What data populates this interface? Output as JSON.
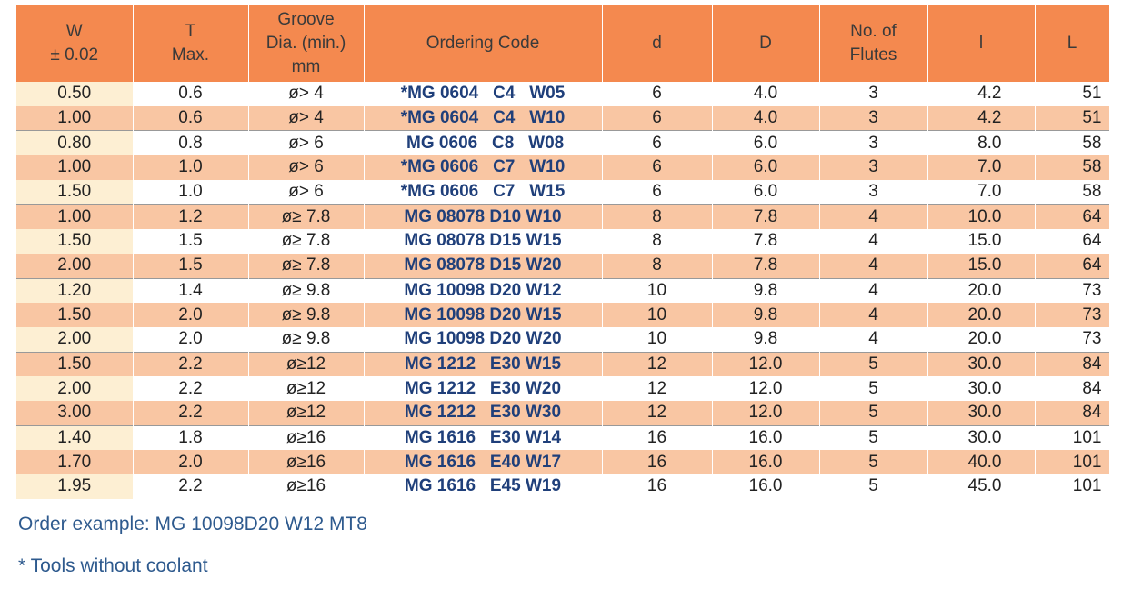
{
  "table": {
    "header": [
      [
        "W",
        "± 0.02"
      ],
      [
        "T",
        "Max."
      ],
      [
        "Groove",
        "Dia. (min.)",
        "mm"
      ],
      [
        "Ordering Code"
      ],
      [
        "d"
      ],
      [
        "D"
      ],
      [
        "No. of",
        "Flutes"
      ],
      [
        "l"
      ],
      [
        "L"
      ]
    ],
    "rows": [
      [
        "0.50",
        "0.6",
        "ø> 4",
        "*MG 0604   C4   W05",
        "6",
        "4.0",
        "3",
        "4.2",
        "51"
      ],
      [
        "1.00",
        "0.6",
        "ø> 4",
        "*MG 0604   C4   W10",
        "6",
        "4.0",
        "3",
        "4.2",
        "51"
      ],
      [
        "0.80",
        "0.8",
        "ø> 6",
        " MG 0606   C8   W08",
        "6",
        "6.0",
        "3",
        "8.0",
        "58"
      ],
      [
        "1.00",
        "1.0",
        "ø> 6",
        "*MG 0606   C7   W10",
        "6",
        "6.0",
        "3",
        "7.0",
        "58"
      ],
      [
        "1.50",
        "1.0",
        "ø> 6",
        "*MG 0606   C7   W15",
        "6",
        "6.0",
        "3",
        "7.0",
        "58"
      ],
      [
        "1.00",
        "1.2",
        "ø≥ 7.8",
        "MG 08078 D10 W10",
        "8",
        "7.8",
        "4",
        "10.0",
        "64"
      ],
      [
        "1.50",
        "1.5",
        "ø≥ 7.8",
        "MG 08078 D15 W15",
        "8",
        "7.8",
        "4",
        "15.0",
        "64"
      ],
      [
        "2.00",
        "1.5",
        "ø≥ 7.8",
        "MG 08078 D15 W20",
        "8",
        "7.8",
        "4",
        "15.0",
        "64"
      ],
      [
        "1.20",
        "1.4",
        "ø≥ 9.8",
        "MG 10098 D20 W12",
        "10",
        "9.8",
        "4",
        "20.0",
        "73"
      ],
      [
        "1.50",
        "2.0",
        "ø≥ 9.8",
        "MG 10098 D20 W15",
        "10",
        "9.8",
        "4",
        "20.0",
        "73"
      ],
      [
        "2.00",
        "2.0",
        "ø≥ 9.8",
        "MG 10098 D20 W20",
        "10",
        "9.8",
        "4",
        "20.0",
        "73"
      ],
      [
        "1.50",
        "2.2",
        "ø≥12",
        "MG 1212   E30 W15",
        "12",
        "12.0",
        "5",
        "30.0",
        "84"
      ],
      [
        "2.00",
        "2.2",
        "ø≥12",
        "MG 1212   E30 W20",
        "12",
        "12.0",
        "5",
        "30.0",
        "84"
      ],
      [
        "3.00",
        "2.2",
        "ø≥12",
        "MG 1212   E30 W30",
        "12",
        "12.0",
        "5",
        "30.0",
        "84"
      ],
      [
        "1.40",
        "1.8",
        "ø≥16",
        "MG 1616   E30 W14",
        "16",
        "16.0",
        "5",
        "30.0",
        "101"
      ],
      [
        "1.70",
        "2.0",
        "ø≥16",
        "MG 1616   E40 W17",
        "16",
        "16.0",
        "5",
        "40.0",
        "101"
      ],
      [
        "1.95",
        "2.2",
        "ø≥16",
        "MG 1616   E45 W19",
        "16",
        "16.0",
        "5",
        "45.0",
        "101"
      ]
    ]
  },
  "notes": [
    "Order example: MG 10098D20 W12 MT8",
    "* Tools without coolant"
  ]
}
